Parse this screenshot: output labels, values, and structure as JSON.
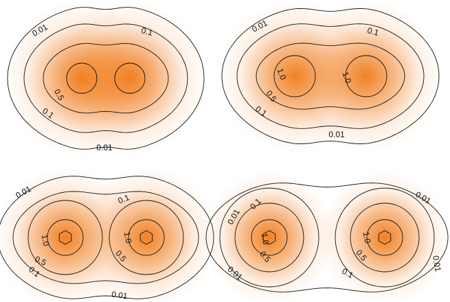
{
  "chart_data": [
    {
      "type": "contour",
      "panel": "top-left",
      "levels": [
        "0.01",
        "0.1",
        "0.5",
        "1.0"
      ],
      "centers": [
        [
          -1.1,
          0.0
        ],
        [
          1.1,
          0.0
        ]
      ],
      "sigma": 0.78,
      "peak_color": "#f07a18",
      "labels": [
        {
          "text": "0.01",
          "level": 0.01
        },
        {
          "text": "0.1",
          "level": 0.1
        },
        {
          "text": "0.5",
          "level": 0.5
        },
        {
          "text": "0.1",
          "level": 0.1
        },
        {
          "text": "0.01",
          "level": 0.01
        }
      ]
    },
    {
      "type": "contour",
      "panel": "top-right",
      "levels": [
        "0.01",
        "0.1",
        "0.5",
        "1.0"
      ],
      "centers": [
        [
          -1.15,
          0.0
        ],
        [
          1.15,
          0.0
        ]
      ],
      "sigma": 0.72,
      "peak_color": "#f07a18",
      "labels": [
        {
          "text": "0.01",
          "level": 0.01
        },
        {
          "text": "0.1",
          "level": 0.1
        },
        {
          "text": "1.0",
          "level": 1.0
        },
        {
          "text": "1.0",
          "level": 1.0
        },
        {
          "text": "0.5",
          "level": 0.5
        },
        {
          "text": "0.1",
          "level": 0.1
        },
        {
          "text": "0.01",
          "level": 0.01
        }
      ]
    },
    {
      "type": "contour",
      "panel": "bottom-left",
      "levels": [
        "0.01",
        "0.1",
        "0.5",
        "1.0"
      ],
      "centers": [
        [
          -1.2,
          0.0
        ],
        [
          1.2,
          0.0
        ]
      ],
      "sigma": 0.62,
      "peak_color": "#f07a18",
      "labels": [
        {
          "text": "0.01",
          "level": 0.01
        },
        {
          "text": "0.1",
          "level": 0.1
        },
        {
          "text": "1.0",
          "level": 1.0
        },
        {
          "text": "1.0",
          "level": 1.0
        },
        {
          "text": "0.5",
          "level": 0.5
        },
        {
          "text": "0.5",
          "level": 0.5
        },
        {
          "text": "0.1",
          "level": 0.1
        },
        {
          "text": "0.01",
          "level": 0.01
        }
      ]
    },
    {
      "type": "contour",
      "panel": "bottom-right",
      "levels": [
        "0.01",
        "0.1",
        "0.5",
        "1.0"
      ],
      "centers": [
        [
          -1.25,
          0.0
        ],
        [
          1.25,
          0.0
        ]
      ],
      "sigma": 0.57,
      "peak_color": "#f07a18",
      "labels": [
        {
          "text": "0.01",
          "level": 0.01
        },
        {
          "text": "0.1",
          "level": 0.1
        },
        {
          "text": "0.01",
          "level": 0.01
        },
        {
          "text": "1.0",
          "level": 1.0
        },
        {
          "text": "1.0",
          "level": 1.0
        },
        {
          "text": "0.5",
          "level": 0.5
        },
        {
          "text": "0.5",
          "level": 0.5
        },
        {
          "text": "0.01",
          "level": 0.01
        },
        {
          "text": "0.01",
          "level": 0.01
        },
        {
          "text": "0.1",
          "level": 0.1
        }
      ]
    }
  ]
}
